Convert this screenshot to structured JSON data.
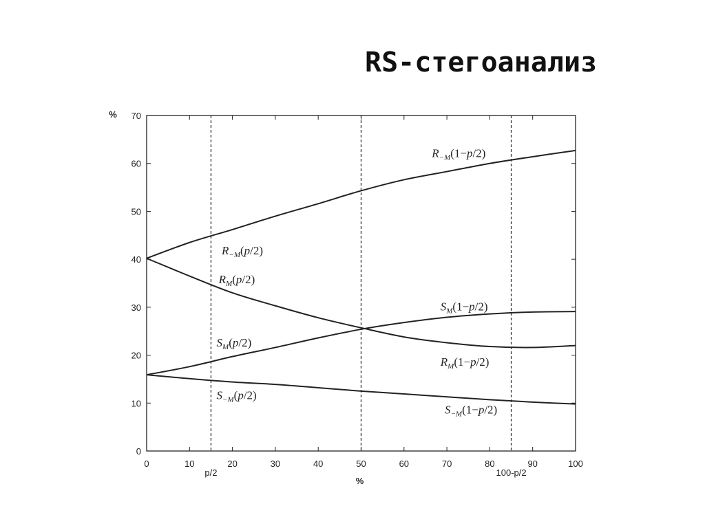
{
  "slide": {
    "title": "RS-стегоанализ"
  },
  "chart_data": {
    "type": "line",
    "x_axis": {
      "label": "%",
      "range": [
        0,
        100
      ],
      "ticks": [
        0,
        10,
        20,
        30,
        40,
        50,
        60,
        70,
        80,
        90,
        100
      ],
      "grid": false
    },
    "y_axis": {
      "label": "%",
      "range": [
        0,
        70
      ],
      "ticks": [
        0,
        10,
        20,
        30,
        40,
        50,
        60,
        70
      ],
      "grid": false
    },
    "markers": [
      {
        "x": 15,
        "label": "p/2"
      },
      {
        "x": 50,
        "label": ""
      },
      {
        "x": 85,
        "label": "100-p/2"
      }
    ],
    "series": [
      {
        "name": "R₋M",
        "x": [
          0,
          10,
          20,
          30,
          40,
          50,
          60,
          70,
          80,
          90,
          100
        ],
        "y": [
          40.2,
          43.5,
          46.2,
          49.0,
          51.6,
          54.3,
          56.6,
          58.3,
          60.0,
          61.4,
          62.7
        ]
      },
      {
        "name": "R_M",
        "x": [
          0,
          10,
          20,
          30,
          40,
          50,
          60,
          70,
          80,
          90,
          100
        ],
        "y": [
          40.2,
          36.5,
          33.0,
          30.3,
          27.8,
          25.7,
          23.8,
          22.6,
          21.8,
          21.6,
          22.0
        ]
      },
      {
        "name": "S_M",
        "x": [
          0,
          10,
          20,
          30,
          40,
          50,
          60,
          70,
          80,
          90,
          100
        ],
        "y": [
          15.9,
          17.6,
          19.7,
          21.6,
          23.6,
          25.4,
          26.8,
          27.9,
          28.6,
          29.0,
          29.1
        ]
      },
      {
        "name": "S₋M",
        "x": [
          0,
          10,
          20,
          30,
          40,
          50,
          60,
          70,
          80,
          90,
          100
        ],
        "y": [
          15.9,
          15.1,
          14.4,
          13.9,
          13.2,
          12.5,
          11.9,
          11.3,
          10.7,
          10.2,
          9.8
        ]
      }
    ],
    "annotations": [
      {
        "base": "R",
        "sub": "−M",
        "arg": "(p/2)",
        "at": [
          17.5,
          41.0
        ]
      },
      {
        "base": "R",
        "sub": "M",
        "arg": "(p/2)",
        "at": [
          16.8,
          35.0
        ]
      },
      {
        "base": "S",
        "sub": "M",
        "arg": "(p/2)",
        "at": [
          16.3,
          21.8
        ]
      },
      {
        "base": "S",
        "sub": "−M",
        "arg": "(p/2)",
        "at": [
          16.3,
          10.8
        ]
      },
      {
        "base": "R",
        "sub": "−M",
        "arg": "(1−p/2)",
        "at": [
          66.5,
          61.3
        ]
      },
      {
        "base": "S",
        "sub": "M",
        "arg": "(1−p/2)",
        "at": [
          68.5,
          29.3
        ]
      },
      {
        "base": "R",
        "sub": "M",
        "arg": "(1−p/2)",
        "at": [
          68.5,
          17.8
        ]
      },
      {
        "base": "S",
        "sub": "−M",
        "arg": "(1−p/2)",
        "at": [
          69.5,
          7.8
        ]
      }
    ]
  }
}
